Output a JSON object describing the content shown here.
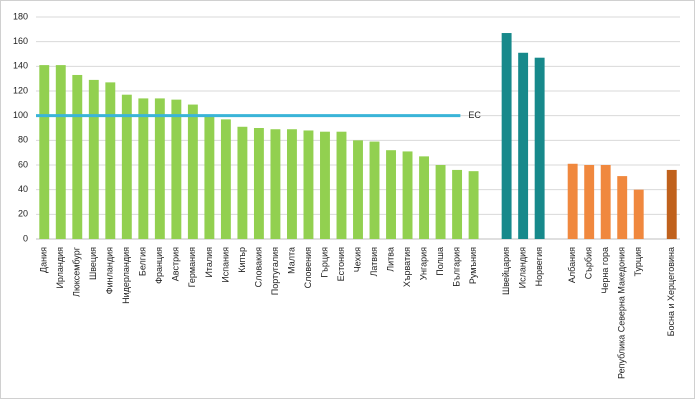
{
  "chart_data": {
    "type": "bar",
    "categories": [
      "Дания",
      "Ирландия",
      "Люксембург",
      "Швеция",
      "Финландия",
      "Нидерландия",
      "Белгия",
      "Франция",
      "Австрия",
      "Германия",
      "Италия",
      "Испания",
      "Кипър",
      "Словакия",
      "Португалия",
      "Малта",
      "Словения",
      "Гърция",
      "Естония",
      "Чехия",
      "Латвия",
      "Литва",
      "Хърватия",
      "Унгария",
      "Полша",
      "България",
      "Румъния",
      null,
      "Швейцария",
      "Исландия",
      "Норвегия",
      null,
      "Албания",
      "Сърбия",
      "Черна гора",
      "Република Северна Македония",
      "Турция",
      null,
      "Босна и Херцеговина"
    ],
    "values": [
      141,
      141,
      133,
      129,
      127,
      117,
      114,
      114,
      113,
      109,
      101,
      97,
      91,
      90,
      89,
      89,
      88,
      87,
      87,
      80,
      79,
      72,
      71,
      67,
      60,
      56,
      55,
      null,
      167,
      151,
      147,
      null,
      61,
      60,
      60,
      51,
      40,
      null,
      56
    ],
    "colors": [
      "#92d050",
      "#92d050",
      "#92d050",
      "#92d050",
      "#92d050",
      "#92d050",
      "#92d050",
      "#92d050",
      "#92d050",
      "#92d050",
      "#92d050",
      "#92d050",
      "#92d050",
      "#92d050",
      "#92d050",
      "#92d050",
      "#92d050",
      "#92d050",
      "#92d050",
      "#92d050",
      "#92d050",
      "#92d050",
      "#92d050",
      "#92d050",
      "#92d050",
      "#92d050",
      "#92d050",
      null,
      "#17898b",
      "#17898b",
      "#17898b",
      null,
      "#f0883e",
      "#f0883e",
      "#f0883e",
      "#f0883e",
      "#f0883e",
      null,
      "#c0611c"
    ],
    "reference_line": {
      "value": 100,
      "label": "ЕС",
      "color": "#3ab4d8"
    },
    "ylim": [
      0,
      180
    ],
    "yticks": [
      0,
      20,
      40,
      60,
      80,
      100,
      120,
      140,
      160,
      180
    ],
    "grid": true
  }
}
